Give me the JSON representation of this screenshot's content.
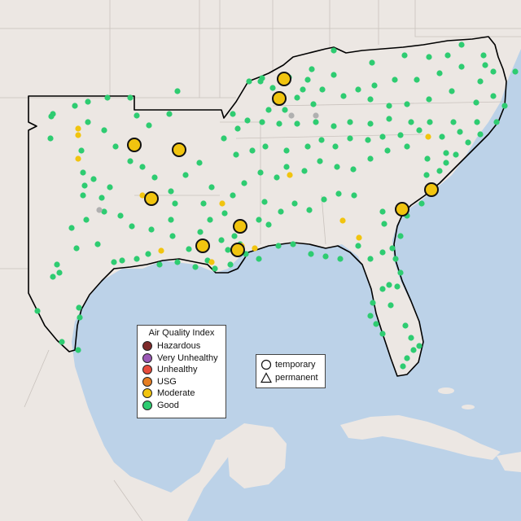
{
  "legend": {
    "title": "Air Quality Index",
    "items": [
      {
        "label": "Hazardous",
        "color": "#7e2a2a"
      },
      {
        "label": "Very Unhealthy",
        "color": "#9b59b6"
      },
      {
        "label": "Unhealthy",
        "color": "#e74c3c"
      },
      {
        "label": "USG",
        "color": "#e67e22"
      },
      {
        "label": "Moderate",
        "color": "#f1c40f"
      },
      {
        "label": "Good",
        "color": "#2ecc71"
      }
    ]
  },
  "type_legend": {
    "temporary": {
      "label": "temporary",
      "icon": "circle-icon"
    },
    "permanent": {
      "label": "permanent",
      "icon": "triangle-icon"
    }
  },
  "colors": {
    "land": "#ece7e3",
    "water": "#bcd2e8",
    "state_border": "#c9c2bd",
    "region_outline": "#000000",
    "good": "#2ecc71",
    "moderate": "#f1c40f",
    "no_data": "#b0b0b0"
  }
}
